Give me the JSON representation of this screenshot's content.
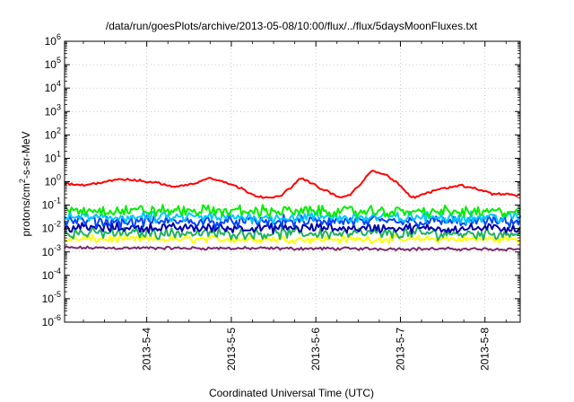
{
  "chart_data": {
    "type": "line",
    "title": "/data/run/goesPlots/archive/2013-05-08/10:00/flux/../flux/5daysMoonFluxes.txt",
    "xlabel": "Coordinated Universal Time (UTC)",
    "ylabel": {
      "base": "protons/cm",
      "sup": "2",
      "rest": "-s-sr-MeV"
    },
    "yscale": "log",
    "ylim": [
      1e-06,
      1000000.0
    ],
    "xlim": [
      "2013-05-03T00:40",
      "2013-05-08T10:00"
    ],
    "grid": true,
    "x_ticks": [
      "2013-5-4",
      "2013-5-5",
      "2013-5-6",
      "2013-5-7",
      "2013-5-8"
    ],
    "x_tick_dates": [
      "2013-05-04T00:00",
      "2013-05-05T00:00",
      "2013-05-06T00:00",
      "2013-05-07T00:00",
      "2013-05-08T00:00"
    ],
    "y_ticks": [
      {
        "base": "10",
        "exp": "6"
      },
      {
        "base": "10",
        "exp": "5"
      },
      {
        "base": "10",
        "exp": "4"
      },
      {
        "base": "10",
        "exp": "3"
      },
      {
        "base": "10",
        "exp": "2"
      },
      {
        "base": "10",
        "exp": "1"
      },
      {
        "base": "10",
        "exp": "0"
      },
      {
        "base": "10",
        "exp": "-1"
      },
      {
        "base": "10",
        "exp": "-2"
      },
      {
        "base": "10",
        "exp": "-3"
      },
      {
        "base": "10",
        "exp": "-4"
      },
      {
        "base": "10",
        "exp": "-5"
      },
      {
        "base": "10",
        "exp": "-6"
      }
    ],
    "series": [
      {
        "color": "#ff0000",
        "noise": 0.06,
        "points": [
          [
            "2013-05-03T00:40",
            0.8
          ],
          [
            "2013-05-03T06:00",
            0.7
          ],
          [
            "2013-05-03T12:00",
            1.0
          ],
          [
            "2013-05-03T16:00",
            1.3
          ],
          [
            "2013-05-03T22:00",
            1.1
          ],
          [
            "2013-05-04T03:00",
            0.9
          ],
          [
            "2013-05-04T08:00",
            0.6
          ],
          [
            "2013-05-04T13:00",
            0.8
          ],
          [
            "2013-05-04T18:00",
            1.5
          ],
          [
            "2013-05-04T22:00",
            1.0
          ],
          [
            "2013-05-05T03:00",
            0.5
          ],
          [
            "2013-05-05T07:00",
            0.25
          ],
          [
            "2013-05-05T12:00",
            0.2
          ],
          [
            "2013-05-05T14:00",
            0.25
          ],
          [
            "2013-05-05T17:00",
            0.6
          ],
          [
            "2013-05-05T20:00",
            1.5
          ],
          [
            "2013-05-05T23:00",
            0.8
          ],
          [
            "2013-05-06T03:00",
            0.4
          ],
          [
            "2013-05-06T07:00",
            0.2
          ],
          [
            "2013-05-06T10:00",
            0.3
          ],
          [
            "2013-05-06T13:00",
            0.9
          ],
          [
            "2013-05-06T16:00",
            3.0
          ],
          [
            "2013-05-06T20:00",
            2.0
          ],
          [
            "2013-05-07T00:00",
            0.7
          ],
          [
            "2013-05-07T03:00",
            0.2
          ],
          [
            "2013-05-07T07:00",
            0.3
          ],
          [
            "2013-05-07T11:00",
            0.5
          ],
          [
            "2013-05-07T17:00",
            0.7
          ],
          [
            "2013-05-07T22:00",
            0.5
          ],
          [
            "2013-05-08T02:00",
            0.3
          ],
          [
            "2013-05-08T06:00",
            0.3
          ],
          [
            "2013-05-08T10:00",
            0.25
          ]
        ]
      },
      {
        "color": "#00ee00",
        "noise": 0.3,
        "points": [
          [
            "2013-05-03T00:40",
            0.06
          ],
          [
            "2013-05-08T10:00",
            0.05
          ]
        ]
      },
      {
        "color": "#00c8ff",
        "noise": 0.3,
        "points": [
          [
            "2013-05-03T00:40",
            0.03
          ],
          [
            "2013-05-08T10:00",
            0.03
          ]
        ]
      },
      {
        "color": "#0044ff",
        "noise": 0.3,
        "points": [
          [
            "2013-05-03T00:40",
            0.02
          ],
          [
            "2013-05-08T10:00",
            0.02
          ]
        ]
      },
      {
        "color": "#0000aa",
        "noise": 0.25,
        "points": [
          [
            "2013-05-03T00:40",
            0.011
          ],
          [
            "2013-05-08T10:00",
            0.01
          ]
        ]
      },
      {
        "color": "#20b060",
        "noise": 0.3,
        "points": [
          [
            "2013-05-03T00:40",
            0.0065
          ],
          [
            "2013-05-08T10:00",
            0.006
          ]
        ]
      },
      {
        "color": "#ffff00",
        "noise": 0.2,
        "points": [
          [
            "2013-05-03T00:40",
            0.0035
          ],
          [
            "2013-05-08T10:00",
            0.0035
          ]
        ]
      },
      {
        "color": "#7a2a6a",
        "noise": 0.08,
        "points": [
          [
            "2013-05-03T00:40",
            0.0015
          ],
          [
            "2013-05-08T10:00",
            0.0013
          ]
        ]
      }
    ]
  }
}
